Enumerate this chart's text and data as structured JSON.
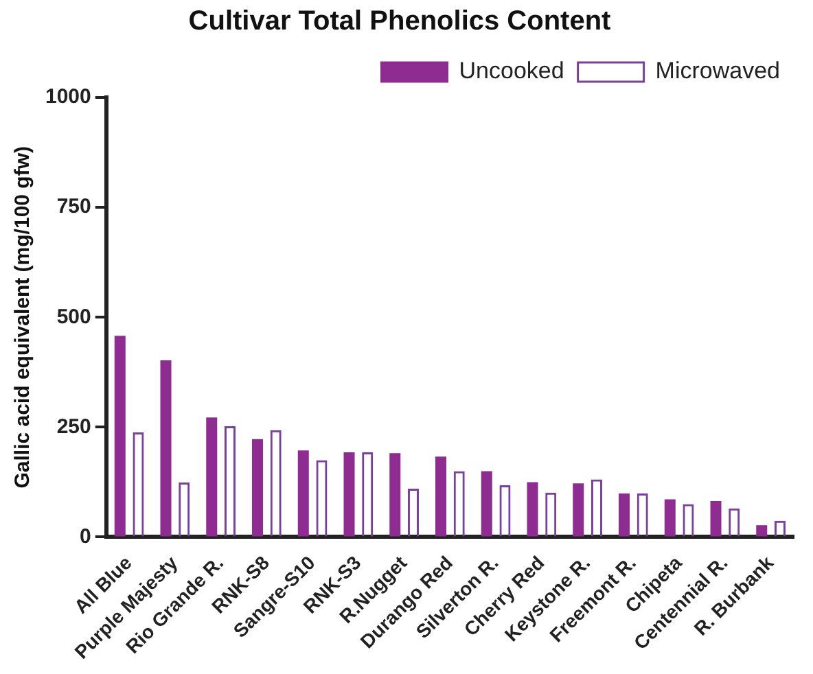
{
  "chart_data": {
    "type": "bar",
    "title": "Cultivar Total Phenolics Content",
    "ylabel": "Gallic acid equivalent (mg/100 gfw)",
    "categories": [
      "All Blue",
      "Purple Majesty",
      "Rio Grande R.",
      "RNK-S8",
      "Sangre-S10",
      "RNK-S3",
      "R.Nugget",
      "Durango Red",
      "Silverton R.",
      "Cherry Red",
      "Keystone R.",
      "Freemont R.",
      "Chipeta",
      "Centennial R.",
      "R. Burbank"
    ],
    "series": [
      {
        "name": "Uncooked",
        "color": "#8e2c91",
        "values": [
          458,
          402,
          272,
          223,
          197,
          193,
          191,
          183,
          150,
          125,
          122,
          99,
          86,
          82,
          27
        ]
      },
      {
        "name": "Microwaved",
        "color": "#7b3f9e",
        "values": [
          238,
          124,
          252,
          243,
          175,
          193,
          110,
          150,
          118,
          101,
          131,
          99,
          75,
          65,
          37
        ]
      }
    ],
    "ylim": [
      0,
      1000
    ],
    "yticks": [
      0,
      250,
      500,
      750,
      1000
    ],
    "grid": false,
    "legend": "top right"
  }
}
